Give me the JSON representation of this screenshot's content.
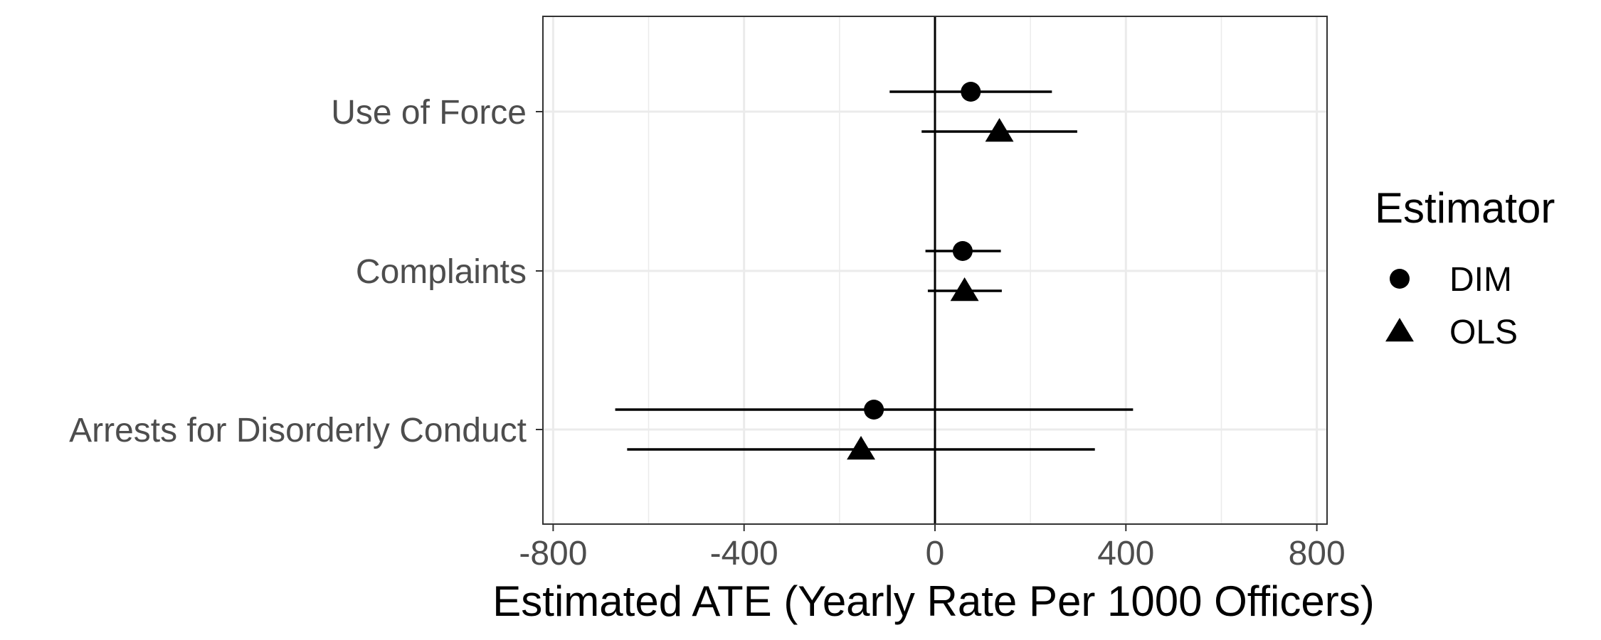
{
  "chart_data": {
    "type": "scatter",
    "title": "",
    "xlabel": "Estimated ATE (Yearly Rate Per 1000 Officers)",
    "ylabel": "",
    "xlim": [
      -800,
      800
    ],
    "x_ticks": [
      "-800",
      "-400",
      "0",
      "400",
      "800"
    ],
    "x_tick_values": [
      -800,
      -400,
      0,
      400,
      800
    ],
    "categories": [
      "Use of Force",
      "Complaints",
      "Arrests for Disorderly Conduct"
    ],
    "grid": true,
    "reference_line_x": 0,
    "legend": {
      "title": "Estimator",
      "position": "right"
    },
    "series": [
      {
        "name": "DIM",
        "marker": "circle",
        "color": "#000000",
        "estimates": [
          75,
          58,
          -128
        ],
        "ci_low": [
          -95,
          -20,
          -670
        ],
        "ci_high": [
          245,
          138,
          415
        ]
      },
      {
        "name": "OLS",
        "marker": "triangle",
        "color": "#000000",
        "estimates": [
          135,
          62,
          -155
        ],
        "ci_low": [
          -28,
          -15,
          -645
        ],
        "ci_high": [
          298,
          140,
          335
        ]
      }
    ]
  }
}
